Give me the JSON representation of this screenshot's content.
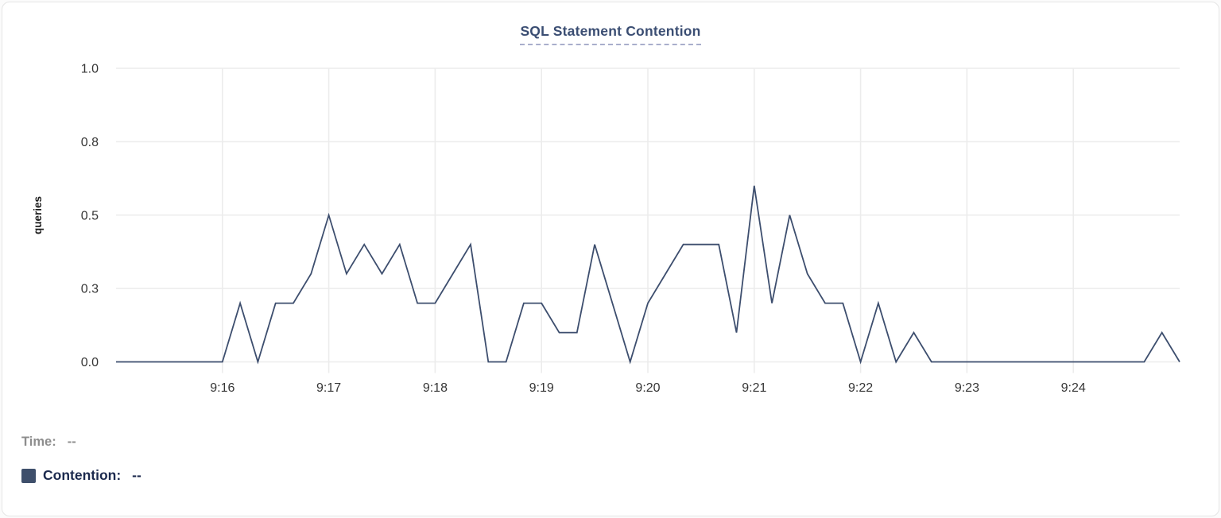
{
  "card": {
    "title": "SQL Statement Contention"
  },
  "legend": {
    "time_label": "Time:",
    "time_value": "--",
    "contention_label": "Contention:",
    "contention_value": "--",
    "swatch_color": "#3e4f6b"
  },
  "colors": {
    "line": "#3d4e6e",
    "title": "#3b4e73",
    "title_underline": "#a9aecb",
    "grid": "#ececec",
    "axis_text": "#363636",
    "legend_muted": "#8d8d8d",
    "legend_dark": "#1c2a4e",
    "card_border": "#e5e5e5"
  },
  "chart_data": {
    "type": "line",
    "title": "SQL Statement Contention",
    "xlabel": "",
    "ylabel": "queries",
    "ylim": [
      0,
      1
    ],
    "grid": true,
    "legend_position": "bottom-left",
    "series_name": "Contention",
    "x_interval_seconds": 10,
    "x": [
      "9:15:00",
      "9:15:10",
      "9:15:20",
      "9:15:30",
      "9:15:40",
      "9:15:50",
      "9:16:00",
      "9:16:10",
      "9:16:20",
      "9:16:30",
      "9:16:40",
      "9:16:50",
      "9:17:00",
      "9:17:10",
      "9:17:20",
      "9:17:30",
      "9:17:40",
      "9:17:50",
      "9:18:00",
      "9:18:10",
      "9:18:20",
      "9:18:30",
      "9:18:40",
      "9:18:50",
      "9:19:00",
      "9:19:10",
      "9:19:20",
      "9:19:30",
      "9:19:40",
      "9:19:50",
      "9:20:00",
      "9:20:10",
      "9:20:20",
      "9:20:30",
      "9:20:40",
      "9:20:50",
      "9:21:00",
      "9:21:10",
      "9:21:20",
      "9:21:30",
      "9:21:40",
      "9:21:50",
      "9:22:00",
      "9:22:10",
      "9:22:20",
      "9:22:30",
      "9:22:40",
      "9:22:50",
      "9:23:00",
      "9:23:10",
      "9:23:20",
      "9:23:30",
      "9:23:40",
      "9:23:50",
      "9:24:00",
      "9:24:10",
      "9:24:20",
      "9:24:30",
      "9:24:40",
      "9:24:50",
      "9:25:00"
    ],
    "values": [
      0,
      0,
      0,
      0,
      0,
      0,
      0,
      0.2,
      0,
      0.2,
      0.2,
      0.3,
      0.5,
      0.3,
      0.4,
      0.3,
      0.4,
      0.2,
      0.2,
      0.3,
      0.4,
      0,
      0,
      0.2,
      0.2,
      0.1,
      0.1,
      0.4,
      0.2,
      0,
      0.2,
      0.3,
      0.4,
      0.4,
      0.4,
      0.1,
      0.6,
      0.2,
      0.5,
      0.3,
      0.2,
      0.2,
      0,
      0.2,
      0,
      0.1,
      0,
      0,
      0,
      0,
      0,
      0,
      0,
      0,
      0,
      0,
      0,
      0,
      0,
      0.1,
      0
    ],
    "y_ticks": [
      {
        "value": 1.0,
        "label": "1.0"
      },
      {
        "value": 0.75,
        "label": "0.8"
      },
      {
        "value": 0.5,
        "label": "0.5"
      },
      {
        "value": 0.25,
        "label": "0.3"
      },
      {
        "value": 0.0,
        "label": "0.0"
      }
    ],
    "x_tick_labels": [
      "9:16",
      "9:17",
      "9:18",
      "9:19",
      "9:20",
      "9:21",
      "9:22",
      "9:23",
      "9:24"
    ],
    "x_tick_indices": [
      6,
      12,
      18,
      24,
      30,
      36,
      42,
      48,
      54
    ]
  }
}
